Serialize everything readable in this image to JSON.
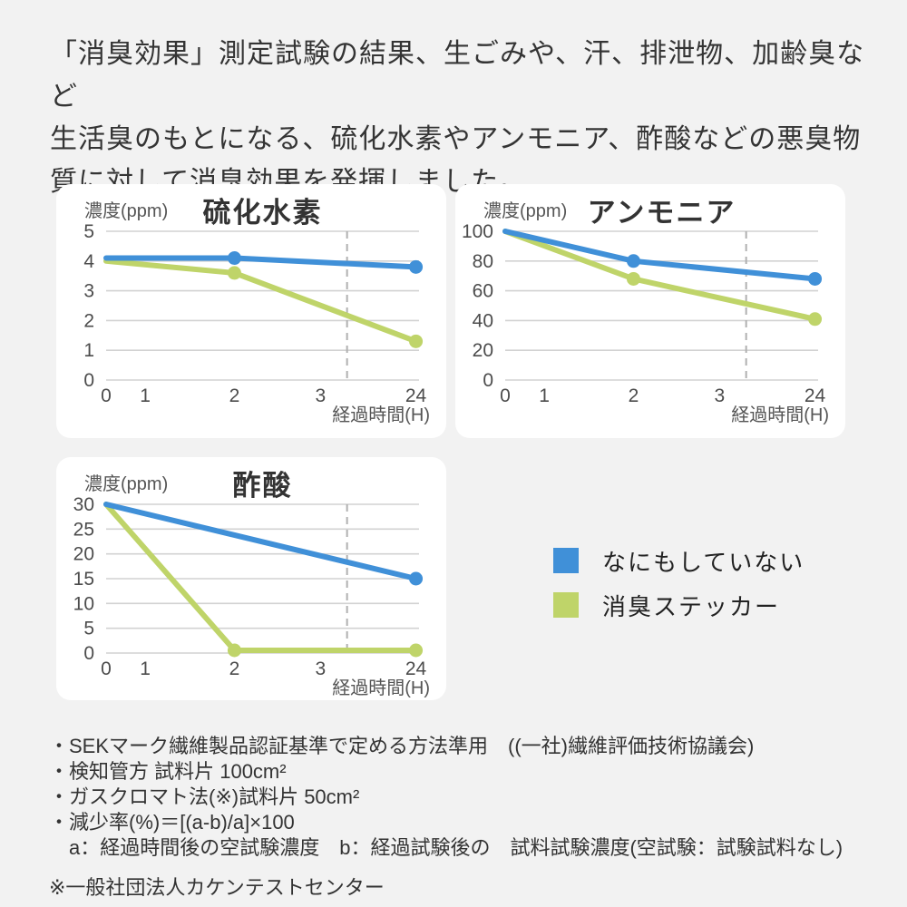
{
  "page": {
    "background": "#f2f2f2",
    "card_background": "#ffffff"
  },
  "colors": {
    "blue": "#4090d8",
    "green": "#bfd469",
    "grid": "#d2d2d2",
    "dash": "#b0b0b0",
    "title_text": "#333333",
    "axis_text": "#4c4c4c",
    "label_text": "#555555"
  },
  "header": {
    "lines": [
      "「消臭効果」測定試験の結果、生ごみや、汗、排泄物、加齢臭など",
      "生活臭のもとになる、硫化水素やアンモニア、酢酸などの悪臭物",
      "質に対して消臭効果を発揮しました。"
    ]
  },
  "chart_data": [
    {
      "type": "line",
      "title": "硫化水素",
      "ylabel": "濃度(ppm)",
      "xlabel": "経過時間(H)",
      "categories": [
        "0",
        "1",
        "2",
        "3",
        "24"
      ],
      "x_positions": [
        0,
        0.125,
        0.41,
        0.685,
        0.99
      ],
      "yticks": [
        0,
        1,
        2,
        3,
        4,
        5
      ],
      "ylim": [
        0,
        5
      ],
      "grid": true,
      "dashed_x": 0.77,
      "series": [
        {
          "name": "なにもしていない",
          "color_key": "blue",
          "points": [
            {
              "x": "0",
              "y": 4.1,
              "dot": false
            },
            {
              "x": "2",
              "y": 4.1,
              "dot": true
            },
            {
              "x": "24",
              "y": 3.8,
              "dot": true
            }
          ]
        },
        {
          "name": "消臭ステッカー",
          "color_key": "green",
          "points": [
            {
              "x": "0",
              "y": 4.0,
              "dot": false
            },
            {
              "x": "2",
              "y": 3.6,
              "dot": true
            },
            {
              "x": "24",
              "y": 1.3,
              "dot": true
            }
          ]
        }
      ]
    },
    {
      "type": "line",
      "title": "アンモニア",
      "ylabel": "濃度(ppm)",
      "xlabel": "経過時間(H)",
      "categories": [
        "0",
        "1",
        "2",
        "3",
        "24"
      ],
      "x_positions": [
        0,
        0.125,
        0.41,
        0.685,
        0.99
      ],
      "yticks": [
        0,
        20,
        40,
        60,
        80,
        100
      ],
      "ylim": [
        0,
        100
      ],
      "grid": true,
      "dashed_x": 0.77,
      "series": [
        {
          "name": "なにもしていない",
          "color_key": "blue",
          "points": [
            {
              "x": "0",
              "y": 100,
              "dot": false
            },
            {
              "x": "2",
              "y": 80,
              "dot": true
            },
            {
              "x": "24",
              "y": 68,
              "dot": true
            }
          ]
        },
        {
          "name": "消臭ステッカー",
          "color_key": "green",
          "points": [
            {
              "x": "0",
              "y": 100,
              "dot": false
            },
            {
              "x": "2",
              "y": 68,
              "dot": true
            },
            {
              "x": "24",
              "y": 41,
              "dot": true
            }
          ]
        }
      ]
    },
    {
      "type": "line",
      "title": "酢酸",
      "ylabel": "濃度(ppm)",
      "xlabel": "経過時間(H)",
      "categories": [
        "0",
        "1",
        "2",
        "3",
        "24"
      ],
      "x_positions": [
        0,
        0.125,
        0.41,
        0.685,
        0.99
      ],
      "yticks": [
        0,
        5,
        10,
        15,
        20,
        25,
        30
      ],
      "ylim": [
        0,
        30
      ],
      "grid": true,
      "dashed_x": 0.77,
      "series": [
        {
          "name": "なにもしていない",
          "color_key": "blue",
          "points": [
            {
              "x": "0",
              "y": 30,
              "dot": false
            },
            {
              "x": "24",
              "y": 15,
              "dot": true
            }
          ]
        },
        {
          "name": "消臭ステッカー",
          "color_key": "green",
          "points": [
            {
              "x": "0",
              "y": 30,
              "dot": false
            },
            {
              "x": "2",
              "y": 0,
              "dot": true
            },
            {
              "x": "24",
              "y": 0,
              "dot": true
            }
          ]
        }
      ]
    }
  ],
  "legend": {
    "items": [
      {
        "label": "なにもしていない",
        "color_key": "blue"
      },
      {
        "label": "消臭ステッカー",
        "color_key": "green"
      }
    ]
  },
  "footnotes": {
    "lines": [
      "・SEKマーク繊維製品認証基準で定める方法準用　((一社)繊維評価技術協議会)",
      "・検知管方 試料片 100cm²",
      "・ガスクロマト法(※)試料片 50cm²",
      "・減少率(%)＝[(a-b)/a]×100",
      "　a：経過時間後の空試験濃度　b：経過試験後の　試料試験濃度(空試験：試験試料なし)",
      "※一般社団法人カケンテストセンター"
    ]
  }
}
